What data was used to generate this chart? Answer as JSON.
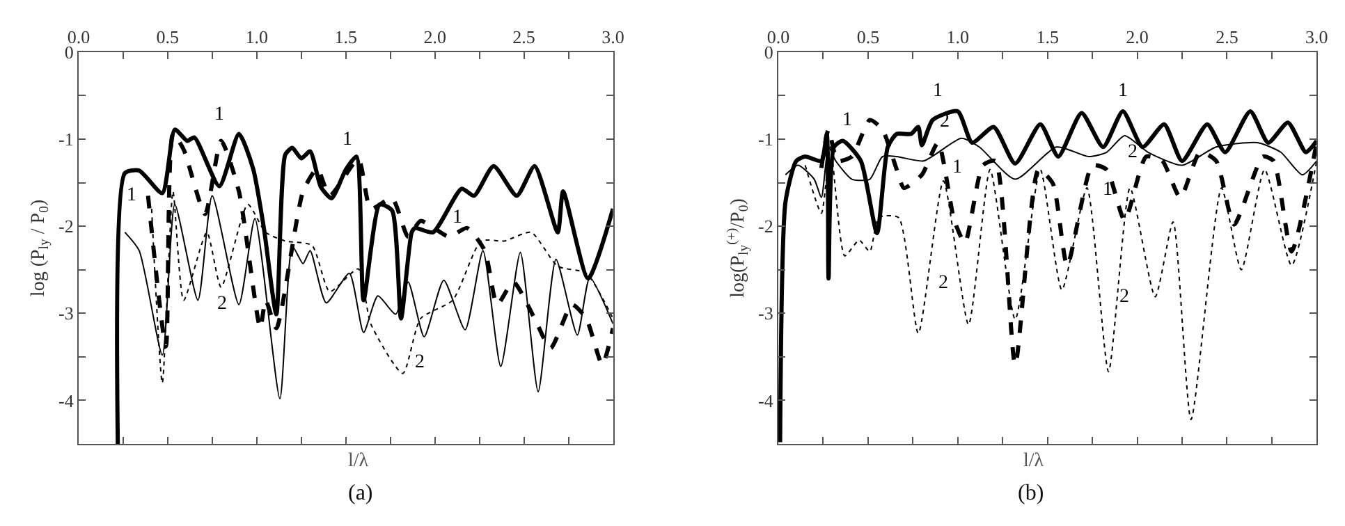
{
  "chart_data": [
    {
      "type": "line",
      "ylabel": "log (P$_{ly}$ / P$_{0}$)",
      "xlabel": "l/λ",
      "xlim": [
        0,
        3
      ],
      "xticks": [
        {
          "value": 0,
          "label": "0.0"
        },
        {
          "value": 0.25,
          "label": null
        },
        {
          "value": 0.5,
          "label": "0.5"
        },
        {
          "value": 0.75,
          "label": null
        },
        {
          "value": 1,
          "label": "1.0"
        },
        {
          "value": 1.25,
          "label": null
        },
        {
          "value": 1.5,
          "label": "1.5"
        },
        {
          "value": 1.75,
          "label": null
        },
        {
          "value": 2,
          "label": "2.0"
        },
        {
          "value": 2.25,
          "label": null
        },
        {
          "value": 2.5,
          "label": "2.5"
        },
        {
          "value": 2.75,
          "label": null
        },
        {
          "value": 3,
          "label": "3.0"
        }
      ],
      "ylim": [
        -4.5,
        0
      ],
      "yticks": [
        {
          "value": -4.5,
          "label": null
        },
        -4,
        {
          "value": -3.5,
          "label": null
        },
        -3,
        {
          "value": -2.5,
          "label": null
        },
        -2,
        {
          "value": -1.5,
          "label": null
        },
        -1,
        {
          "value": -0.5,
          "label": null
        },
        0
      ],
      "legend": false,
      "series": [
        {
          "name": "1",
          "color": "#000000",
          "line_style": "solid",
          "x": [
            0.22,
            0.26,
            0.34,
            0.47,
            0.54,
            0.61,
            0.65,
            0.79,
            0.9,
            0.98,
            1.04,
            1.11,
            1.16,
            1.2,
            1.25,
            1.3,
            1.36,
            1.42,
            1.5,
            1.56,
            1.6,
            1.69,
            1.76,
            1.81,
            1.87,
            1.89,
            1.99,
            2.15,
            2.22,
            2.33,
            2.46,
            2.56,
            2.69,
            2.72,
            2.86,
            3.0
          ],
          "values": [
            -4.5,
            -1.39,
            -1.36,
            -1.62,
            -0.89,
            -1.02,
            -0.98,
            -1.54,
            -0.94,
            -1.34,
            -2.02,
            -3.01,
            -1.18,
            -1.1,
            -1.22,
            -1.14,
            -1.55,
            -1.68,
            -1.35,
            -1.2,
            -2.85,
            -1.75,
            -1.82,
            -3.06,
            -2.07,
            -2.02,
            -2.07,
            -1.57,
            -1.65,
            -1.31,
            -1.65,
            -1.31,
            -2.07,
            -1.6,
            -2.6,
            -1.8
          ]
        },
        {
          "name": "1",
          "color": "#000000",
          "line_style": "dashed",
          "x": [
            0.39,
            0.49,
            0.53,
            0.59,
            0.71,
            0.8,
            0.9,
            1.02,
            1.05,
            1.11,
            1.26,
            1.34,
            1.41,
            1.57,
            1.64,
            1.76,
            1.85,
            1.92,
            2.08,
            2.18,
            2.28,
            2.35,
            2.44,
            2.56,
            2.65,
            2.77,
            2.85,
            2.94,
            3.0
          ],
          "values": [
            -1.65,
            -3.38,
            -0.94,
            -1.12,
            -1.86,
            -1.02,
            -1.6,
            -3.17,
            -2.85,
            -3.17,
            -1.6,
            -1.34,
            -1.65,
            -1.23,
            -1.8,
            -1.68,
            -2.12,
            -1.94,
            -2.12,
            -2.02,
            -2.28,
            -2.9,
            -2.64,
            -3.06,
            -3.4,
            -2.9,
            -3.06,
            -3.59,
            -3.17
          ]
        },
        {
          "name": "2",
          "color": "#000000",
          "line_style": "solid",
          "x": [
            0.26,
            0.34,
            0.47,
            0.54,
            0.67,
            0.75,
            0.9,
            0.99,
            1.13,
            1.2,
            1.26,
            1.3,
            1.39,
            1.52,
            1.6,
            1.68,
            1.78,
            1.85,
            1.94,
            2.05,
            2.17,
            2.27,
            2.37,
            2.48,
            2.58,
            2.68,
            2.8,
            2.87,
            3.0
          ],
          "values": [
            -2.07,
            -2.28,
            -3.48,
            -1.75,
            -2.85,
            -1.65,
            -2.9,
            -1.91,
            -3.98,
            -2.23,
            -2.43,
            -2.28,
            -2.88,
            -2.54,
            -3.22,
            -2.8,
            -3.01,
            -2.64,
            -3.27,
            -2.62,
            -3.19,
            -2.28,
            -3.61,
            -2.3,
            -3.9,
            -2.38,
            -3.25,
            -2.59,
            -3.12
          ]
        },
        {
          "name": "2",
          "color": "#000000",
          "line_style": "dotted",
          "x": [
            0.41,
            0.47,
            0.53,
            0.59,
            0.72,
            0.8,
            0.95,
            1.05,
            1.16,
            1.31,
            1.41,
            1.57,
            1.64,
            1.82,
            1.92,
            2.1,
            2.26,
            2.39,
            2.54,
            2.69,
            2.85,
            3.0
          ],
          "values": [
            -1.8,
            -3.8,
            -1.6,
            -2.85,
            -2.07,
            -2.7,
            -1.75,
            -2.07,
            -2.17,
            -2.22,
            -2.75,
            -2.49,
            -3.12,
            -3.69,
            -3.06,
            -2.85,
            -2.17,
            -2.17,
            -2.07,
            -2.46,
            -2.54,
            -3.06
          ]
        }
      ],
      "annotations": [
        "(a)"
      ]
    },
    {
      "type": "line",
      "ylabel": "log(P$_{ly}$$^{(+)}$/P$_{0}$)",
      "xlabel": "l/λ",
      "xlim": [
        0,
        3
      ],
      "xticks": [
        {
          "value": 0,
          "label": "0.0"
        },
        {
          "value": 0.25,
          "label": null
        },
        {
          "value": 0.5,
          "label": "0.5"
        },
        {
          "value": 0.75,
          "label": null
        },
        {
          "value": 1,
          "label": "1.0"
        },
        {
          "value": 1.25,
          "label": null
        },
        {
          "value": 1.5,
          "label": "1.5"
        },
        {
          "value": 1.75,
          "label": null
        },
        {
          "value": 2,
          "label": "2.0"
        },
        {
          "value": 2.25,
          "label": null
        },
        {
          "value": 2.5,
          "label": "2.5"
        },
        {
          "value": 2.75,
          "label": null
        },
        {
          "value": 3,
          "label": "3.0"
        }
      ],
      "ylim": [
        -4.5,
        0
      ],
      "yticks": [
        {
          "value": -4.5,
          "label": null
        },
        -4,
        {
          "value": -3.5,
          "label": null
        },
        -3,
        {
          "value": -2.5,
          "label": null
        },
        -2,
        {
          "value": -1.5,
          "label": null
        },
        -1,
        {
          "value": -0.5,
          "label": null
        },
        0
      ],
      "legend": false,
      "series": [
        {
          "name": "1",
          "color": "#000000",
          "line_style": "solid",
          "x": [
            0.01,
            0.04,
            0.1,
            0.15,
            0.24,
            0.27,
            0.28,
            0.31,
            0.36,
            0.46,
            0.55,
            0.61,
            0.66,
            0.74,
            0.78,
            0.8,
            0.86,
            1.0,
            1.08,
            1.2,
            1.32,
            1.46,
            1.56,
            1.69,
            1.81,
            1.92,
            2.03,
            2.15,
            2.25,
            2.39,
            2.49,
            2.63,
            2.73,
            2.84,
            2.94,
            3.0
          ],
          "values": [
            -4.48,
            -1.72,
            -1.25,
            -1.2,
            -1.25,
            -0.94,
            -2.6,
            -1.09,
            -1.02,
            -1.25,
            -2.08,
            -1.09,
            -0.94,
            -0.94,
            -0.86,
            -1.07,
            -0.78,
            -0.68,
            -1.04,
            -0.86,
            -1.28,
            -0.83,
            -1.2,
            -0.7,
            -1.09,
            -0.68,
            -1.09,
            -0.83,
            -1.25,
            -0.83,
            -1.15,
            -0.68,
            -1.04,
            -0.81,
            -1.15,
            -1.02
          ]
        },
        {
          "name": "1",
          "color": "#000000",
          "line_style": "dashed",
          "x": [
            0.24,
            0.28,
            0.33,
            0.41,
            0.51,
            0.58,
            0.66,
            0.7,
            0.8,
            0.89,
            0.98,
            1.04,
            1.14,
            1.21,
            1.32,
            1.45,
            1.53,
            1.61,
            1.75,
            1.83,
            1.93,
            2.05,
            2.14,
            2.24,
            2.35,
            2.44,
            2.54,
            2.7,
            2.76,
            2.86,
            3.0
          ],
          "values": [
            -1.33,
            -0.89,
            -1.25,
            -1.2,
            -0.78,
            -0.89,
            -1.35,
            -1.56,
            -1.41,
            -1.04,
            -1.93,
            -2.19,
            -1.3,
            -1.25,
            -3.59,
            -1.35,
            -1.51,
            -2.45,
            -1.3,
            -1.35,
            -1.93,
            -1.2,
            -1.25,
            -1.67,
            -1.15,
            -1.25,
            -1.98,
            -1.2,
            -1.25,
            -2.29,
            -1.04
          ]
        },
        {
          "name": "2",
          "color": "#000000",
          "line_style": "solid",
          "x": [
            0.04,
            0.11,
            0.2,
            0.24,
            0.28,
            0.32,
            0.41,
            0.51,
            0.58,
            0.66,
            0.81,
            1.02,
            1.12,
            1.32,
            1.55,
            1.73,
            1.83,
            1.93,
            2.06,
            2.25,
            2.44,
            2.67,
            2.8,
            2.92,
            3.0
          ],
          "values": [
            -1.41,
            -1.3,
            -1.46,
            -1.67,
            -1.09,
            -1.25,
            -1.46,
            -1.46,
            -1.2,
            -1.2,
            -1.25,
            -0.99,
            -1.09,
            -1.46,
            -1.09,
            -1.2,
            -1.15,
            -0.96,
            -1.15,
            -1.3,
            -1.09,
            -1.04,
            -1.15,
            -1.41,
            -1.25
          ]
        },
        {
          "name": "2",
          "color": "#000000",
          "line_style": "dotted",
          "x": [
            0.15,
            0.24,
            0.29,
            0.37,
            0.45,
            0.51,
            0.56,
            0.67,
            0.78,
            0.92,
            1.06,
            1.18,
            1.32,
            1.46,
            1.58,
            1.72,
            1.84,
            1.96,
            2.1,
            2.2,
            2.3,
            2.47,
            2.58,
            2.71,
            2.86,
            3.0
          ],
          "values": [
            -1.3,
            -1.85,
            -1.09,
            -2.34,
            -2.16,
            -2.29,
            -1.9,
            -1.9,
            -3.23,
            -1.48,
            -3.13,
            -1.35,
            -3.07,
            -1.35,
            -2.73,
            -1.56,
            -3.67,
            -1.56,
            -2.81,
            -1.95,
            -4.22,
            -1.56,
            -2.5,
            -1.35,
            -2.45,
            -1.25
          ]
        }
      ],
      "annotations": [
        "(b)"
      ]
    }
  ]
}
